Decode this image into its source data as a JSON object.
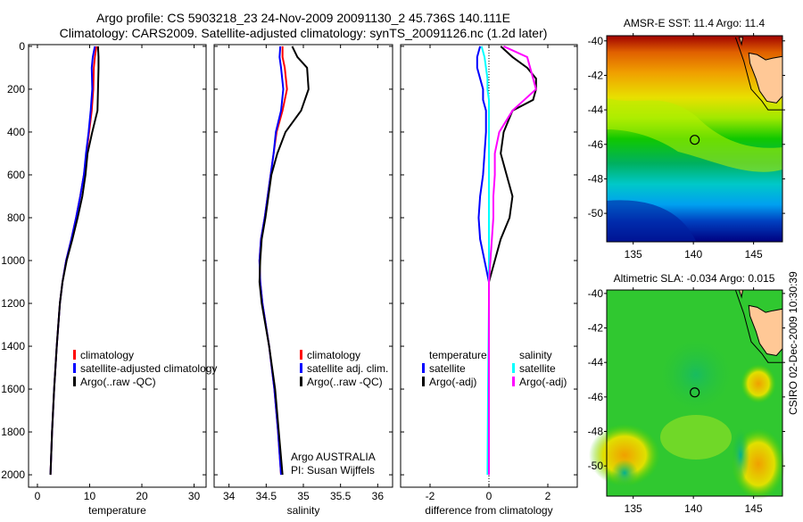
{
  "title_line1": "Argo profile: CS 5903218_23 24-Nov-2009 20091130_2 45.736S 140.111E",
  "title_line2": "Climatology: CARS2009. Satellite-adjusted climatology: synTS_20091126.nc (1.2d later)",
  "colors": {
    "climatology": "#ff0000",
    "satellite": "#0000ff",
    "argo": "#000000",
    "sal_satellite": "#00ffff",
    "sal_argo": "#ff00ff"
  },
  "chart_data": [
    {
      "type": "line",
      "xlabel": "temperature",
      "ylabel": "",
      "xlim": [
        -1.7,
        32.3
      ],
      "ylim": [
        -8,
        2058
      ],
      "xticks": [
        "0",
        "10",
        "20",
        "30"
      ],
      "xtick_values": [
        0,
        10,
        20,
        30
      ],
      "yticks": [
        "0",
        "200",
        "400",
        "600",
        "800",
        "1000",
        "1200",
        "1400",
        "1600",
        "1800",
        "2000"
      ],
      "depth": [
        0,
        50,
        100,
        200,
        300,
        400,
        500,
        600,
        700,
        800,
        900,
        1000,
        1100,
        1200,
        1400,
        1600,
        1800,
        2000
      ],
      "series": [
        {
          "name": "climatology",
          "color": "#ff0000",
          "values": [
            11.3,
            11.0,
            10.8,
            10.7,
            10.4,
            9.9,
            9.4,
            8.9,
            8.2,
            7.4,
            6.5,
            5.5,
            4.8,
            4.3,
            3.7,
            3.2,
            2.8,
            2.5
          ]
        },
        {
          "name": "satellite-adjusted climatology",
          "color": "#0000ff",
          "values": [
            11.0,
            10.6,
            10.4,
            10.5,
            10.2,
            9.8,
            9.3,
            8.9,
            8.2,
            7.4,
            6.5,
            5.5,
            4.8,
            4.3,
            3.7,
            3.2,
            2.8,
            2.5
          ]
        },
        {
          "name": "Argo(..raw -QC)",
          "color": "#000000",
          "values": [
            11.6,
            11.7,
            11.7,
            11.6,
            11.5,
            10.5,
            9.6,
            9.2,
            8.6,
            7.7,
            6.7,
            5.6,
            4.8,
            4.3,
            3.7,
            3.2,
            2.8,
            2.5
          ]
        }
      ],
      "legend": [
        "climatology",
        "satellite-adjusted climatology",
        "Argo(..raw -QC)"
      ]
    },
    {
      "type": "line",
      "xlabel": "salinity",
      "xlim": [
        33.8,
        36.2
      ],
      "ylim": [
        -8,
        2058
      ],
      "xticks": [
        "34",
        "34.5",
        "35",
        "35.5",
        "36"
      ],
      "xtick_values": [
        34,
        34.5,
        35,
        35.5,
        36
      ],
      "depth": [
        0,
        50,
        100,
        200,
        300,
        400,
        500,
        600,
        700,
        800,
        900,
        1000,
        1100,
        1200,
        1400,
        1600,
        1800,
        2000
      ],
      "series": [
        {
          "name": "climatology",
          "color": "#ff0000",
          "values": [
            34.72,
            34.72,
            34.75,
            34.78,
            34.72,
            34.64,
            34.6,
            34.56,
            34.52,
            34.48,
            34.43,
            34.41,
            34.42,
            34.45,
            34.54,
            34.61,
            34.66,
            34.7
          ]
        },
        {
          "name": "satellite adj. clim.",
          "color": "#0000ff",
          "values": [
            34.69,
            34.68,
            34.7,
            34.73,
            34.7,
            34.63,
            34.6,
            34.56,
            34.52,
            34.48,
            34.43,
            34.41,
            34.42,
            34.45,
            34.54,
            34.61,
            34.66,
            34.7
          ]
        },
        {
          "name": "Argo(..raw -QC)",
          "color": "#000000",
          "values": [
            34.85,
            34.92,
            35.05,
            35.07,
            34.97,
            34.76,
            34.65,
            34.57,
            34.53,
            34.49,
            34.44,
            34.42,
            34.41,
            34.44,
            34.54,
            34.62,
            34.67,
            34.72
          ]
        }
      ],
      "legend": [
        "climatology",
        "satellite adj. clim.",
        "Argo(..raw -QC)"
      ],
      "annotation": [
        "Argo AUSTRALIA",
        "PI: Susan Wijffels"
      ]
    },
    {
      "type": "line",
      "xlabel": "difference from climatology",
      "xlim": [
        -3,
        3
      ],
      "ylim": [
        -8,
        2058
      ],
      "xticks": [
        "-2",
        "0",
        "2"
      ],
      "xtick_values": [
        -2,
        0,
        2
      ],
      "depth": [
        0,
        50,
        100,
        150,
        200,
        250,
        300,
        400,
        500,
        600,
        700,
        800,
        900,
        1000,
        1100,
        1200,
        1600,
        2000
      ],
      "series": [
        {
          "name": "temperature satellite",
          "color": "#0000ff",
          "values": [
            -0.3,
            -0.4,
            -0.4,
            -0.3,
            -0.2,
            -0.2,
            -0.1,
            -0.1,
            -0.15,
            -0.2,
            -0.3,
            -0.35,
            -0.3,
            -0.15,
            0,
            0,
            0,
            0
          ]
        },
        {
          "name": "temperature Argo(-adj)",
          "color": "#000000",
          "values": [
            0.4,
            0.8,
            1.3,
            1.6,
            1.6,
            1.5,
            0.8,
            0.5,
            0.4,
            0.6,
            0.8,
            0.7,
            0.4,
            0.2,
            0,
            0,
            0,
            0
          ]
        },
        {
          "name": "salinity satellite",
          "color": "#00ffff",
          "values": [
            -0.25,
            -0.15,
            -0.1,
            -0.05,
            -0.05,
            0,
            0,
            0,
            0,
            0,
            0,
            0,
            0,
            0,
            0,
            0,
            -0.03,
            -0.05
          ]
        },
        {
          "name": "salinity Argo(-adj)",
          "color": "#ff00ff",
          "values": [
            0.5,
            1.3,
            1.4,
            1.5,
            1.6,
            1.2,
            0.8,
            0.35,
            0.2,
            0.2,
            0.15,
            0.15,
            0.1,
            0.05,
            0,
            0,
            0,
            0
          ]
        }
      ],
      "legend_headers": [
        "temperature",
        "salinity"
      ],
      "legend": [
        "satellite",
        "Argo(-adj)",
        "satellite",
        "Argo(-adj)"
      ]
    },
    {
      "type": "heatmap",
      "title": "AMSR-E SST: 11.4 Argo: 11.4",
      "xlim": [
        132.8,
        147.4
      ],
      "ylim": [
        -51.65,
        -39.7
      ],
      "xticks": [
        "135",
        "140",
        "145"
      ],
      "xtick_values": [
        135,
        140,
        145
      ],
      "yticks": [
        "-40",
        "-42",
        "-44",
        "-46",
        "-48",
        "-50"
      ],
      "ytick_values": [
        -40,
        -42,
        -44,
        -46,
        -48,
        -50
      ],
      "marker": {
        "lon": 140.111,
        "lat": -45.736
      }
    },
    {
      "type": "heatmap",
      "title": "Altimetric SLA: -0.034 Argo: 0.015",
      "xlim": [
        132.8,
        147.4
      ],
      "ylim": [
        -51.75,
        -39.8
      ],
      "xticks": [
        "135",
        "140",
        "145"
      ],
      "xtick_values": [
        135,
        140,
        145
      ],
      "yticks": [
        "-40",
        "-42",
        "-44",
        "-46",
        "-48",
        "-50"
      ],
      "ytick_values": [
        -40,
        -42,
        -44,
        -46,
        -48,
        -50
      ],
      "marker": {
        "lon": 140.111,
        "lat": -45.736
      }
    }
  ],
  "footer_stamp": "CSIRO 02-Dec-2009 10:30:39"
}
